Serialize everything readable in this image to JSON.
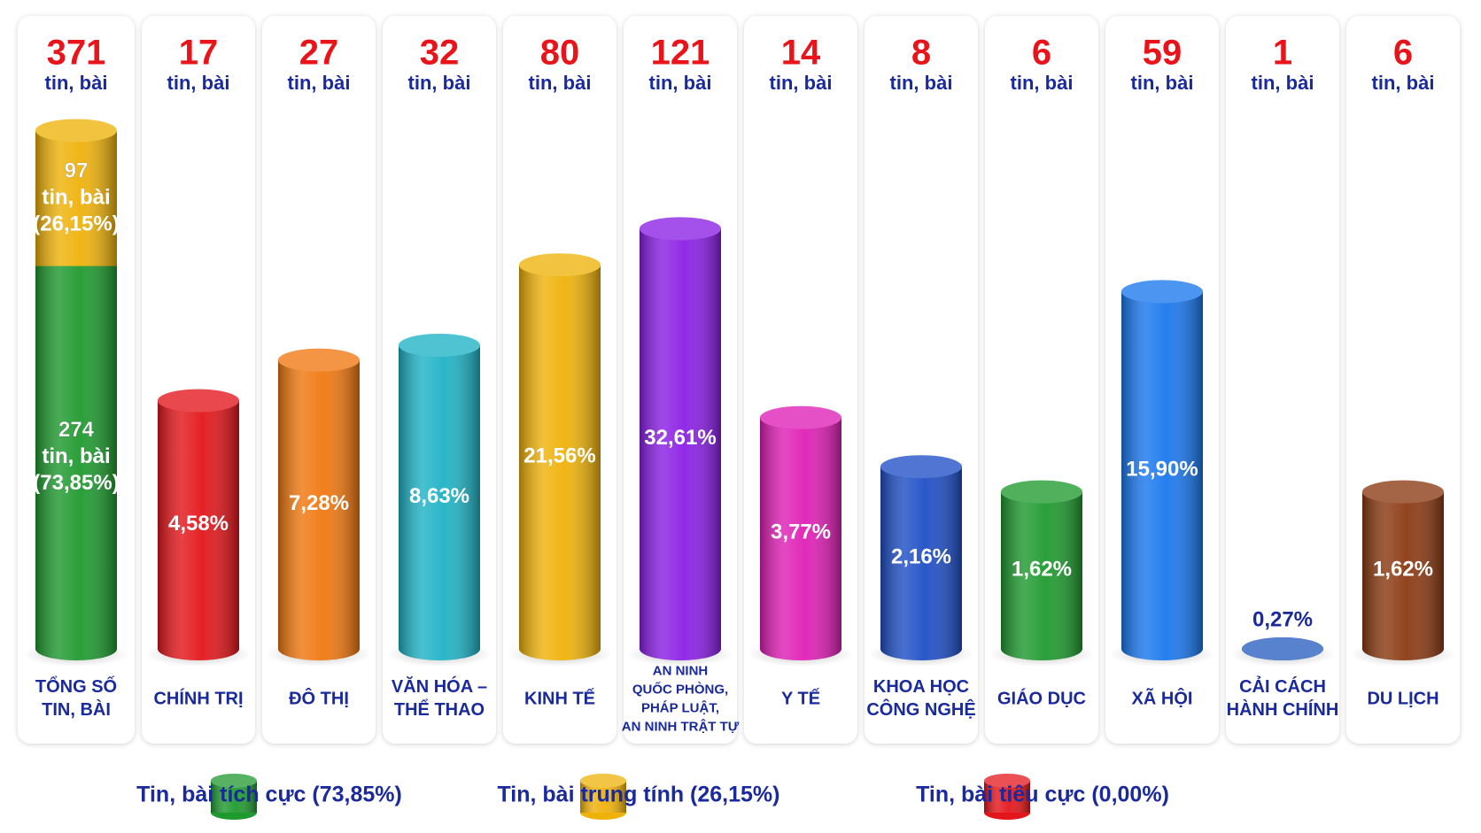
{
  "chart_data": {
    "type": "bar",
    "unit": "tin, bài",
    "log_scale": true,
    "ylim": [
      1,
      400
    ],
    "total": {
      "category": "TỔNG SỐ\nTIN, BÀI",
      "value": 371,
      "segments": [
        {
          "value": 274,
          "share_label": "(73,85%)",
          "color": "#1f9a2f"
        },
        {
          "value": 97,
          "share_label": "(26,15%)",
          "color": "#efb20a"
        }
      ]
    },
    "categories": [
      "CHÍNH TRỊ",
      "ĐÔ THỊ",
      "VĂN HÓA –\nTHỂ THAO",
      "KINH TẾ",
      "AN NINH\nQUỐC PHÒNG,\nPHÁP LUẬT,\nAN NINH TRẬT TỰ",
      "Y TẾ",
      "KHOA HỌC\nCÔNG NGHỆ",
      "GIÁO DỤC",
      "XÃ HỘI",
      "CẢI CÁCH\nHÀNH CHÍNH",
      "DU LỊCH"
    ],
    "values": [
      17,
      27,
      32,
      80,
      121,
      14,
      8,
      6,
      59,
      1,
      6
    ],
    "colors": [
      "#e3161b",
      "#f07810",
      "#1fb3c6",
      "#efb20a",
      "#8b1fe6",
      "#df1fb6",
      "#1f4fc6",
      "#1f9a2f",
      "#1a78ee",
      "#2a5fc0",
      "#8b3a12"
    ],
    "shares": {
      "values": [
        4.58,
        7.28,
        8.63,
        21.56,
        32.61,
        3.77,
        2.16,
        1.62,
        15.9,
        0.27,
        1.62
      ],
      "value_labels": [
        "4,58%",
        "7,28%",
        "8,63%",
        "21,56%",
        "32,61%",
        "3,77%",
        "2,16%",
        "1,62%",
        "15,90%",
        "0,27%",
        "1,62%"
      ]
    },
    "legend": [
      {
        "name": "Tin, bài tích cực (73,85%)",
        "color": "#1f9a2f"
      },
      {
        "name": "Tin, bài trung tính (26,15%)",
        "color": "#efb20a"
      },
      {
        "name": "Tin, bài tiêu cực (0,00%)",
        "color": "#e3161b"
      }
    ]
  }
}
